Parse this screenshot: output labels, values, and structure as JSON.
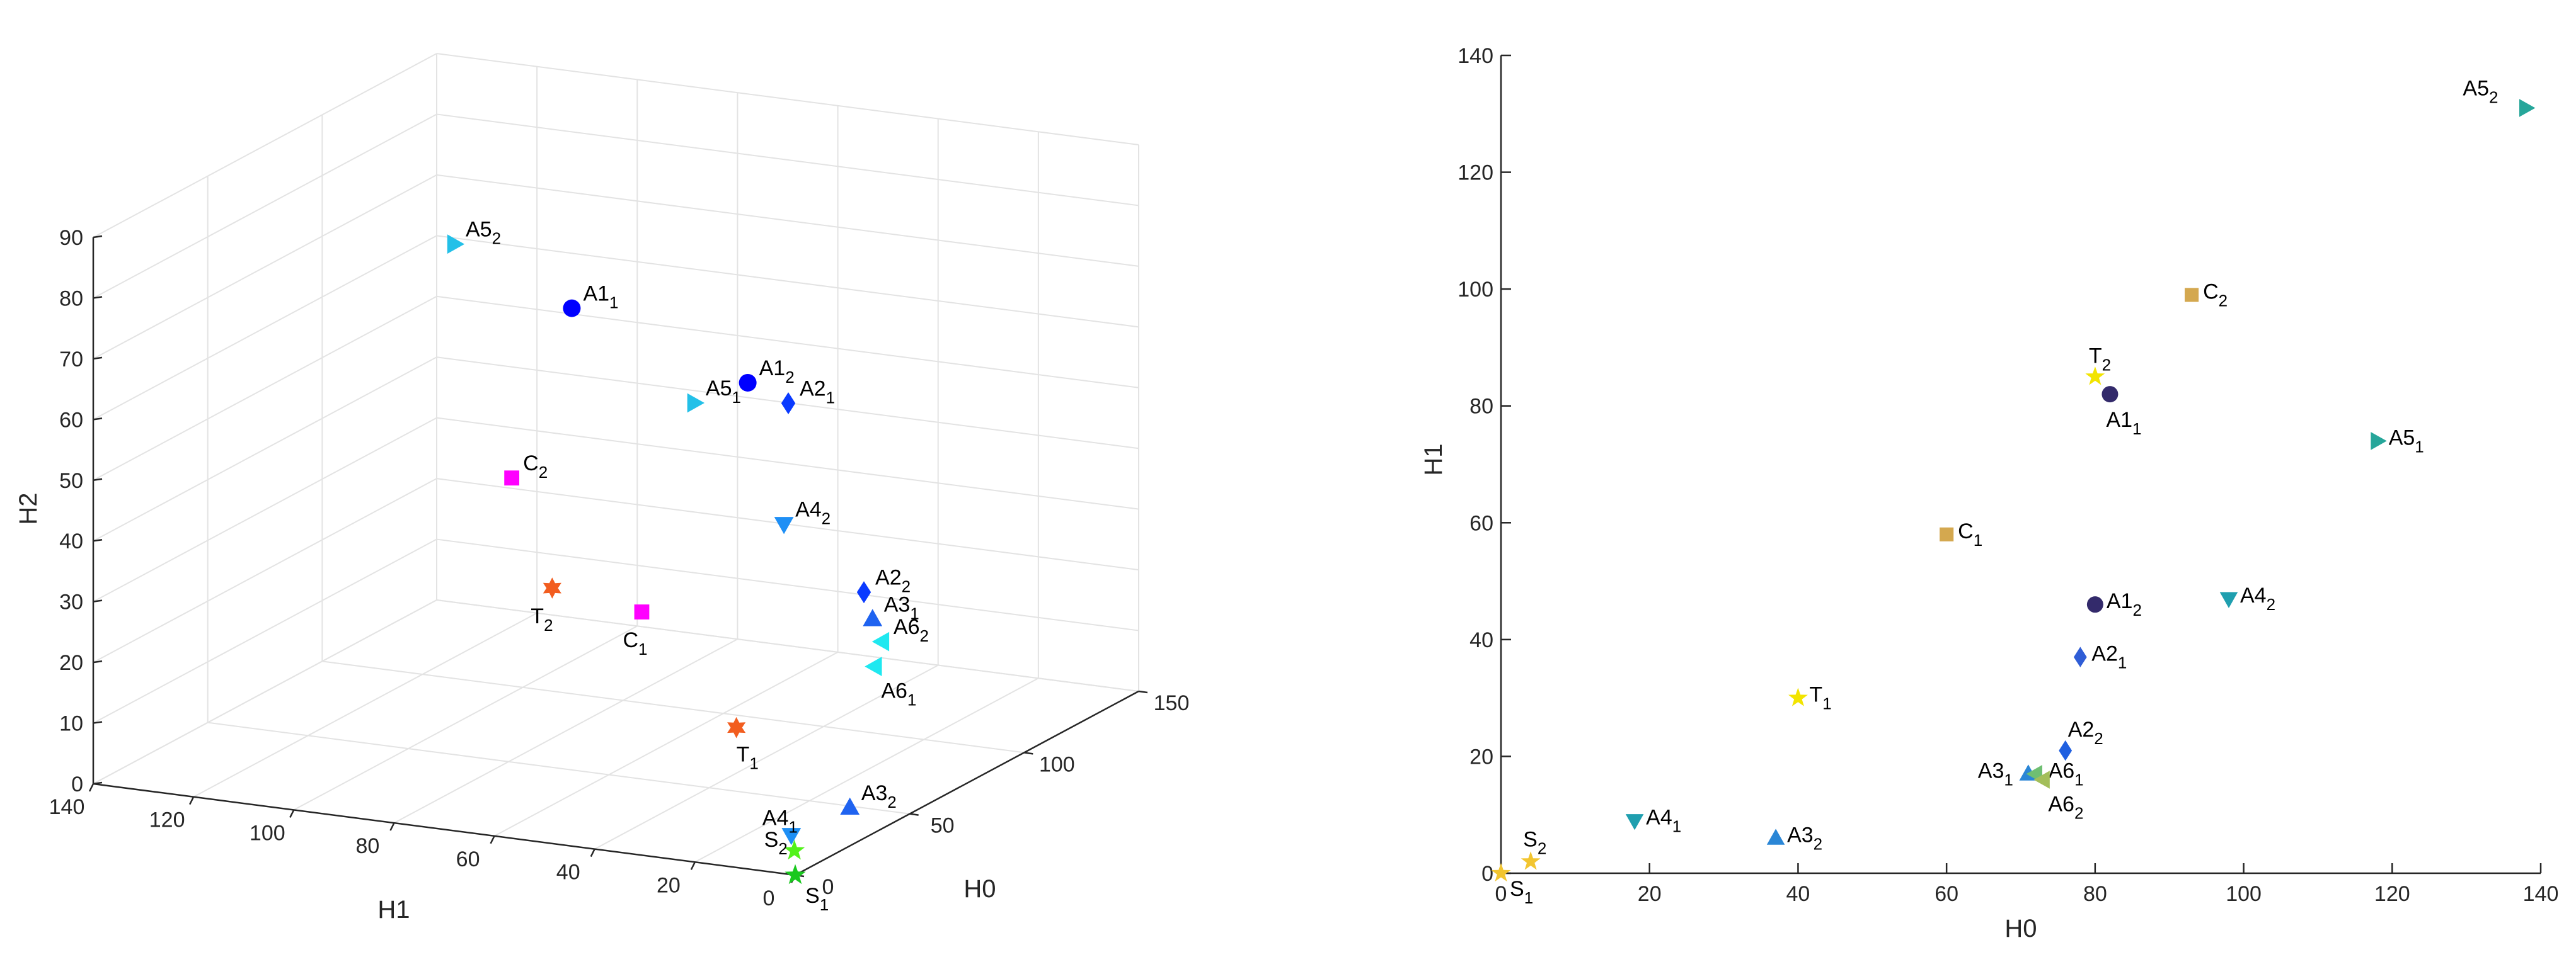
{
  "chart_data": [
    {
      "type": "scatter3d",
      "xlabel": "H0",
      "ylabel": "H1",
      "zlabel": "H2",
      "xlim": [
        0,
        150
      ],
      "ylim": [
        0,
        140
      ],
      "zlim": [
        0,
        90
      ],
      "x_ticks": [
        0,
        50,
        100,
        150
      ],
      "y_ticks": [
        0,
        20,
        40,
        60,
        80,
        100,
        120,
        140
      ],
      "z_ticks": [
        0,
        10,
        20,
        30,
        40,
        50,
        60,
        70,
        80,
        90
      ],
      "grid": true,
      "points": [
        {
          "name": "A1",
          "sub": "1",
          "x": 82,
          "y": 82,
          "z": 68,
          "marker": "circle",
          "color": "#0000FF"
        },
        {
          "name": "A1",
          "sub": "2",
          "x": 80,
          "y": 46,
          "z": 60,
          "marker": "circle",
          "color": "#0000FF"
        },
        {
          "name": "A2",
          "sub": "1",
          "x": 78,
          "y": 37,
          "z": 58,
          "marker": "diamond",
          "color": "#0A3AFF"
        },
        {
          "name": "A2",
          "sub": "2",
          "x": 76,
          "y": 21,
          "z": 29,
          "marker": "diamond",
          "color": "#0A3AFF"
        },
        {
          "name": "A3",
          "sub": "1",
          "x": 71,
          "y": 17,
          "z": 26,
          "marker": "triangle-up",
          "color": "#1F63F0"
        },
        {
          "name": "A3",
          "sub": "2",
          "x": 37,
          "y": 6,
          "z": 3,
          "marker": "triangle-up",
          "color": "#1F63F0"
        },
        {
          "name": "A4",
          "sub": "1",
          "x": 18,
          "y": 9,
          "z": 2,
          "marker": "triangle-down",
          "color": "#1E8FF5"
        },
        {
          "name": "A4",
          "sub": "2",
          "x": 98,
          "y": 47,
          "z": 33,
          "marker": "triangle-down",
          "color": "#1E8FF5"
        },
        {
          "name": "A5",
          "sub": "1",
          "x": 118,
          "y": 74,
          "z": 46,
          "marker": "triangle-right",
          "color": "#23C0E8"
        },
        {
          "name": "A5",
          "sub": "2",
          "x": 138,
          "y": 131,
          "z": 62,
          "marker": "triangle-right",
          "color": "#23C0E8"
        },
        {
          "name": "A6",
          "sub": "1",
          "x": 72,
          "y": 17,
          "z": 18,
          "marker": "triangle-left",
          "color": "#1FE8F0"
        },
        {
          "name": "A6",
          "sub": "2",
          "x": 73,
          "y": 16,
          "z": 22,
          "marker": "triangle-left",
          "color": "#1FE8F0"
        },
        {
          "name": "C",
          "sub": "1",
          "x": 60,
          "y": 58,
          "z": 25,
          "marker": "square",
          "color": "#FF00FF"
        },
        {
          "name": "C",
          "sub": "2",
          "x": 93,
          "y": 99,
          "z": 36,
          "marker": "square",
          "color": "#FF00FF"
        },
        {
          "name": "T",
          "sub": "1",
          "x": 40,
          "y": 30,
          "z": 13,
          "marker": "hexagram",
          "color": "#F25D1F"
        },
        {
          "name": "T",
          "sub": "2",
          "x": 80,
          "y": 85,
          "z": 22,
          "marker": "hexagram",
          "color": "#F25D1F"
        },
        {
          "name": "S",
          "sub": "1",
          "x": 0,
          "y": 0,
          "z": 0,
          "marker": "pentagram",
          "color": "#19C81E"
        },
        {
          "name": "S",
          "sub": "2",
          "x": 4,
          "y": 2,
          "z": 3,
          "marker": "pentagram",
          "color": "#52F219"
        }
      ]
    },
    {
      "type": "scatter",
      "xlabel": "H0",
      "ylabel": "H1",
      "xlim": [
        0,
        140
      ],
      "ylim": [
        0,
        140
      ],
      "x_ticks": [
        0,
        20,
        40,
        60,
        80,
        100,
        120,
        140
      ],
      "y_ticks": [
        0,
        20,
        40,
        60,
        80,
        100,
        120,
        140
      ],
      "grid": false,
      "points": [
        {
          "name": "A5",
          "sub": "2",
          "x": 138,
          "y": 131,
          "marker": "triangle-right",
          "color": "#26A69A"
        },
        {
          "name": "C",
          "sub": "2",
          "x": 93,
          "y": 99,
          "marker": "square",
          "color": "#D4A84F"
        },
        {
          "name": "T",
          "sub": "2",
          "x": 80,
          "y": 85,
          "marker": "pentagram",
          "color": "#F2E400"
        },
        {
          "name": "A1",
          "sub": "1",
          "x": 82,
          "y": 82,
          "marker": "circle",
          "color": "#332A6B"
        },
        {
          "name": "A5",
          "sub": "1",
          "x": 118,
          "y": 74,
          "marker": "triangle-right",
          "color": "#26A69A"
        },
        {
          "name": "C",
          "sub": "1",
          "x": 60,
          "y": 58,
          "marker": "square",
          "color": "#D4A84F"
        },
        {
          "name": "A1",
          "sub": "2",
          "x": 80,
          "y": 46,
          "marker": "circle",
          "color": "#332A6B"
        },
        {
          "name": "A4",
          "sub": "2",
          "x": 98,
          "y": 47,
          "marker": "triangle-down",
          "color": "#1F9FAF"
        },
        {
          "name": "A2",
          "sub": "1",
          "x": 78,
          "y": 37,
          "marker": "diamond",
          "color": "#2F5DD6"
        },
        {
          "name": "T",
          "sub": "1",
          "x": 40,
          "y": 30,
          "marker": "pentagram",
          "color": "#F2E400"
        },
        {
          "name": "A2",
          "sub": "2",
          "x": 76,
          "y": 21,
          "marker": "diamond",
          "color": "#1F5FE0"
        },
        {
          "name": "A3",
          "sub": "1",
          "x": 71,
          "y": 17,
          "marker": "triangle-up",
          "color": "#2A86D6"
        },
        {
          "name": "A6",
          "sub": "1",
          "x": 72,
          "y": 17,
          "marker": "triangle-left",
          "color": "#6FBF72"
        },
        {
          "name": "A6",
          "sub": "2",
          "x": 73,
          "y": 16,
          "marker": "triangle-left",
          "color": "#A3BE5A"
        },
        {
          "name": "A4",
          "sub": "1",
          "x": 18,
          "y": 9,
          "marker": "triangle-down",
          "color": "#1F9FAF"
        },
        {
          "name": "A3",
          "sub": "2",
          "x": 37,
          "y": 6,
          "marker": "triangle-up",
          "color": "#2A86D6"
        },
        {
          "name": "S",
          "sub": "2",
          "x": 4,
          "y": 2,
          "marker": "pentagram",
          "color": "#F2C530"
        },
        {
          "name": "S",
          "sub": "1",
          "x": 0,
          "y": 0,
          "marker": "pentagram",
          "color": "#F2C530"
        }
      ]
    }
  ]
}
